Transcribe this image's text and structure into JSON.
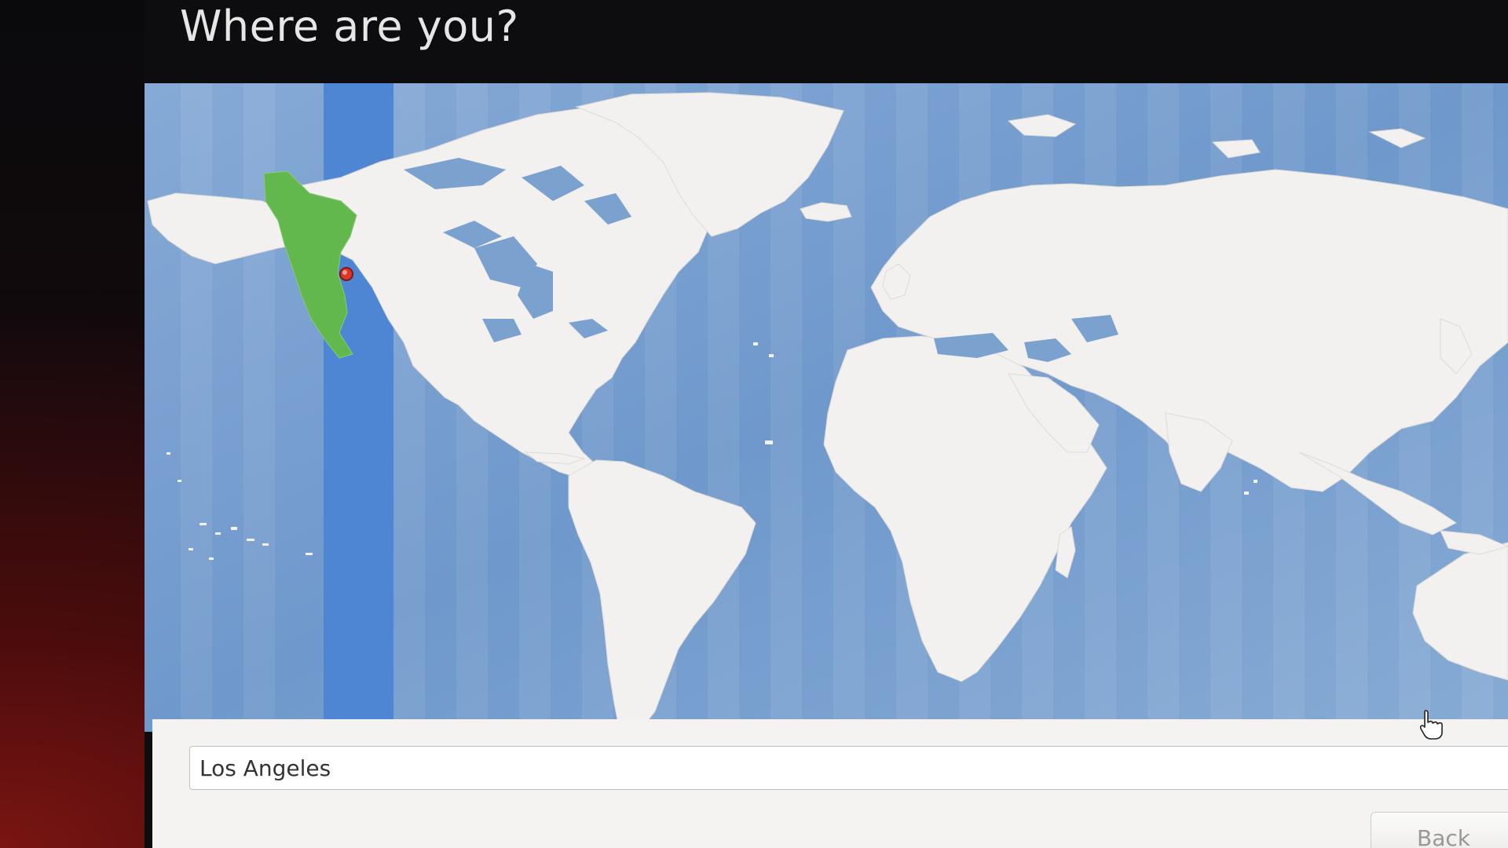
{
  "dialog": {
    "title": "Where are you?"
  },
  "map": {
    "selected_city": "Los Angeles",
    "colors": {
      "ocean": "#7ba1cf",
      "land": "#f2f1ef",
      "highlighted_timezone_band": "#4f86d4",
      "selected_region": "#62b84d",
      "city_marker": "#d8372a"
    }
  },
  "location": {
    "value": "Los Angeles"
  },
  "buttons": {
    "back_label": "Back"
  },
  "icons": {
    "city_marker": "location-pin-icon",
    "cursor": "hand-pointer-icon"
  }
}
